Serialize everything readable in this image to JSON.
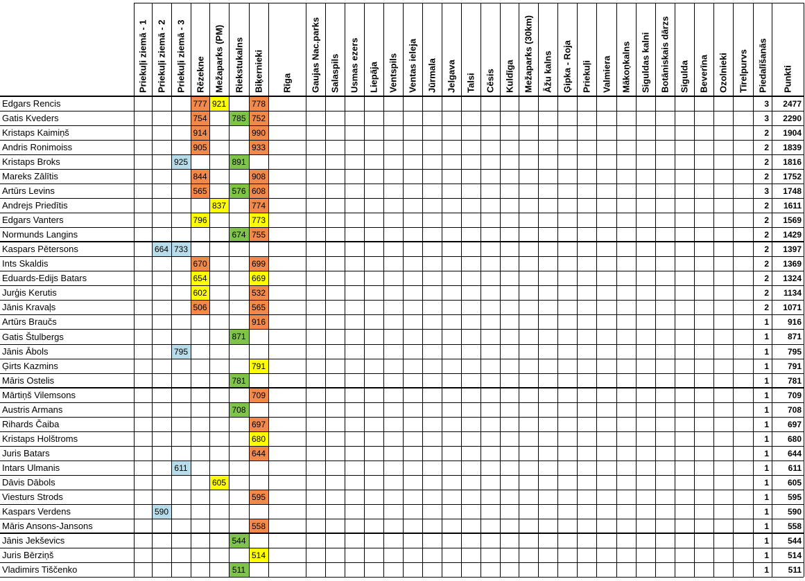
{
  "colors": {
    "orange": "#f0894a",
    "yellow": "#ffff00",
    "green": "#7fc34a",
    "blue": "#b8dcea"
  },
  "columns": [
    "Priekuļi ziemā - 1",
    "Priekuļi ziemā - 2",
    "Priekuļi ziemā - 3",
    "Rēzekne",
    "Mežaparks (PM)",
    "Riekstukalns",
    "Biķernieki",
    "Rīga",
    "Gaujas Nac.parks",
    "Salaspils",
    "Usmas ezers",
    "Liepāja",
    "Ventspils",
    "Ventas ieleja",
    "Jūrmala",
    "Jelgava",
    "Talsi",
    "Cēsis",
    "Kuldīga",
    "Mežaparks (30km)",
    "Āžu kalns",
    "Ģipka - Roja",
    "Priekuļi",
    "Valmiera",
    "Mākoņkalns",
    "Siguldas kalni",
    "Botāniskais dārzs",
    "Sigulda",
    "Beverīna",
    "Ozolnieki",
    "Tīrelpurvs",
    "Piedalīšanās",
    "Punkti"
  ],
  "rows": [
    {
      "name": "Edgars Rencis",
      "cells": [
        {
          "col": 3,
          "value": "777",
          "color": "orange"
        },
        {
          "col": 4,
          "value": "921",
          "color": "yellow"
        },
        {
          "col": 6,
          "value": "778",
          "color": "orange"
        }
      ],
      "count": "3",
      "points": "2477"
    },
    {
      "name": "Gatis Kveders",
      "cells": [
        {
          "col": 3,
          "value": "754",
          "color": "orange"
        },
        {
          "col": 5,
          "value": "785",
          "color": "green"
        },
        {
          "col": 6,
          "value": "752",
          "color": "orange"
        }
      ],
      "count": "3",
      "points": "2290"
    },
    {
      "name": "Kristaps Kaimiņš",
      "cells": [
        {
          "col": 3,
          "value": "914",
          "color": "orange"
        },
        {
          "col": 6,
          "value": "990",
          "color": "orange"
        }
      ],
      "count": "2",
      "points": "1904"
    },
    {
      "name": "Andris Ronimoiss",
      "cells": [
        {
          "col": 3,
          "value": "905",
          "color": "orange"
        },
        {
          "col": 6,
          "value": "933",
          "color": "orange"
        }
      ],
      "count": "2",
      "points": "1839"
    },
    {
      "name": "Kristaps Broks",
      "cells": [
        {
          "col": 2,
          "value": "925",
          "color": "blue"
        },
        {
          "col": 5,
          "value": "891",
          "color": "green"
        }
      ],
      "count": "2",
      "points": "1816"
    },
    {
      "name": "Mareks Zālītis",
      "cells": [
        {
          "col": 3,
          "value": "844",
          "color": "orange"
        },
        {
          "col": 6,
          "value": "908",
          "color": "orange"
        }
      ],
      "count": "2",
      "points": "1752"
    },
    {
      "name": "Artūrs Levins",
      "cells": [
        {
          "col": 3,
          "value": "565",
          "color": "orange"
        },
        {
          "col": 5,
          "value": "576",
          "color": "green"
        },
        {
          "col": 6,
          "value": "608",
          "color": "orange"
        }
      ],
      "count": "3",
      "points": "1748"
    },
    {
      "name": "Andrejs Priedītis",
      "cells": [
        {
          "col": 4,
          "value": "837",
          "color": "yellow"
        },
        {
          "col": 6,
          "value": "774",
          "color": "orange"
        }
      ],
      "count": "2",
      "points": "1611"
    },
    {
      "name": "Edgars Vanters",
      "cells": [
        {
          "col": 3,
          "value": "796",
          "color": "yellow"
        },
        {
          "col": 6,
          "value": "773",
          "color": "yellow"
        }
      ],
      "count": "2",
      "points": "1569"
    },
    {
      "name": "Normunds Langins",
      "cells": [
        {
          "col": 5,
          "value": "674",
          "color": "green"
        },
        {
          "col": 6,
          "value": "755",
          "color": "orange"
        }
      ],
      "count": "2",
      "points": "1429"
    },
    {
      "name": "Kaspars Pētersons",
      "cells": [
        {
          "col": 1,
          "value": "664",
          "color": "blue"
        },
        {
          "col": 2,
          "value": "733",
          "color": "blue"
        }
      ],
      "count": "2",
      "points": "1397"
    },
    {
      "name": "Ints Skaldis",
      "cells": [
        {
          "col": 3,
          "value": "670",
          "color": "orange"
        },
        {
          "col": 6,
          "value": "699",
          "color": "orange"
        }
      ],
      "count": "2",
      "points": "1369"
    },
    {
      "name": "Eduards-Edijs Batars",
      "cells": [
        {
          "col": 3,
          "value": "654",
          "color": "yellow"
        },
        {
          "col": 6,
          "value": "669",
          "color": "yellow"
        }
      ],
      "count": "2",
      "points": "1324"
    },
    {
      "name": "Jurģis Kerutis",
      "cells": [
        {
          "col": 3,
          "value": "602",
          "color": "yellow"
        },
        {
          "col": 6,
          "value": "532",
          "color": "orange"
        }
      ],
      "count": "2",
      "points": "1134"
    },
    {
      "name": "Jānis Kravaļs",
      "cells": [
        {
          "col": 3,
          "value": "506",
          "color": "orange"
        },
        {
          "col": 6,
          "value": "565",
          "color": "orange"
        }
      ],
      "count": "2",
      "points": "1071"
    },
    {
      "name": "Artūrs Braučs",
      "cells": [
        {
          "col": 6,
          "value": "916",
          "color": "orange"
        }
      ],
      "count": "1",
      "points": "916"
    },
    {
      "name": "Gatis Štulbergs",
      "cells": [
        {
          "col": 5,
          "value": "871",
          "color": "green"
        }
      ],
      "count": "1",
      "points": "871"
    },
    {
      "name": "Jānis Ābols",
      "cells": [
        {
          "col": 2,
          "value": "795",
          "color": "blue"
        }
      ],
      "count": "1",
      "points": "795"
    },
    {
      "name": "Ģirts Kazmins",
      "cells": [
        {
          "col": 6,
          "value": "791",
          "color": "yellow"
        }
      ],
      "count": "1",
      "points": "791"
    },
    {
      "name": "Māris Ostelis",
      "cells": [
        {
          "col": 5,
          "value": "781",
          "color": "green"
        }
      ],
      "count": "1",
      "points": "781"
    },
    {
      "name": "Mārtiņš Vilemsons",
      "cells": [
        {
          "col": 6,
          "value": "709",
          "color": "orange"
        }
      ],
      "count": "1",
      "points": "709"
    },
    {
      "name": "Austris Armans",
      "cells": [
        {
          "col": 5,
          "value": "708",
          "color": "green"
        }
      ],
      "count": "1",
      "points": "708"
    },
    {
      "name": "Rihards Čaiba",
      "cells": [
        {
          "col": 6,
          "value": "697",
          "color": "orange"
        }
      ],
      "count": "1",
      "points": "697"
    },
    {
      "name": "Kristaps Holštroms",
      "cells": [
        {
          "col": 6,
          "value": "680",
          "color": "yellow"
        }
      ],
      "count": "1",
      "points": "680"
    },
    {
      "name": "Juris Batars",
      "cells": [
        {
          "col": 6,
          "value": "644",
          "color": "orange"
        }
      ],
      "count": "1",
      "points": "644"
    },
    {
      "name": "Intars Ulmanis",
      "cells": [
        {
          "col": 2,
          "value": "611",
          "color": "blue"
        }
      ],
      "count": "1",
      "points": "611"
    },
    {
      "name": "Dāvis Dābols",
      "cells": [
        {
          "col": 4,
          "value": "605",
          "color": "yellow"
        }
      ],
      "count": "1",
      "points": "605"
    },
    {
      "name": "Viesturs Strods",
      "cells": [
        {
          "col": 6,
          "value": "595",
          "color": "orange"
        }
      ],
      "count": "1",
      "points": "595"
    },
    {
      "name": "Kaspars Verdens",
      "cells": [
        {
          "col": 1,
          "value": "590",
          "color": "blue"
        }
      ],
      "count": "1",
      "points": "590"
    },
    {
      "name": "Māris Ansons-Jansons",
      "cells": [
        {
          "col": 6,
          "value": "558",
          "color": "orange"
        }
      ],
      "count": "1",
      "points": "558"
    },
    {
      "name": "Jānis Jekševics",
      "cells": [
        {
          "col": 5,
          "value": "544",
          "color": "green"
        }
      ],
      "count": "1",
      "points": "544"
    },
    {
      "name": "Juris Bērziņš",
      "cells": [
        {
          "col": 6,
          "value": "514",
          "color": "yellow"
        }
      ],
      "count": "1",
      "points": "514"
    },
    {
      "name": "Vladimirs Tiščenko",
      "cells": [
        {
          "col": 5,
          "value": "511",
          "color": "green"
        }
      ],
      "count": "1",
      "points": "511"
    }
  ]
}
